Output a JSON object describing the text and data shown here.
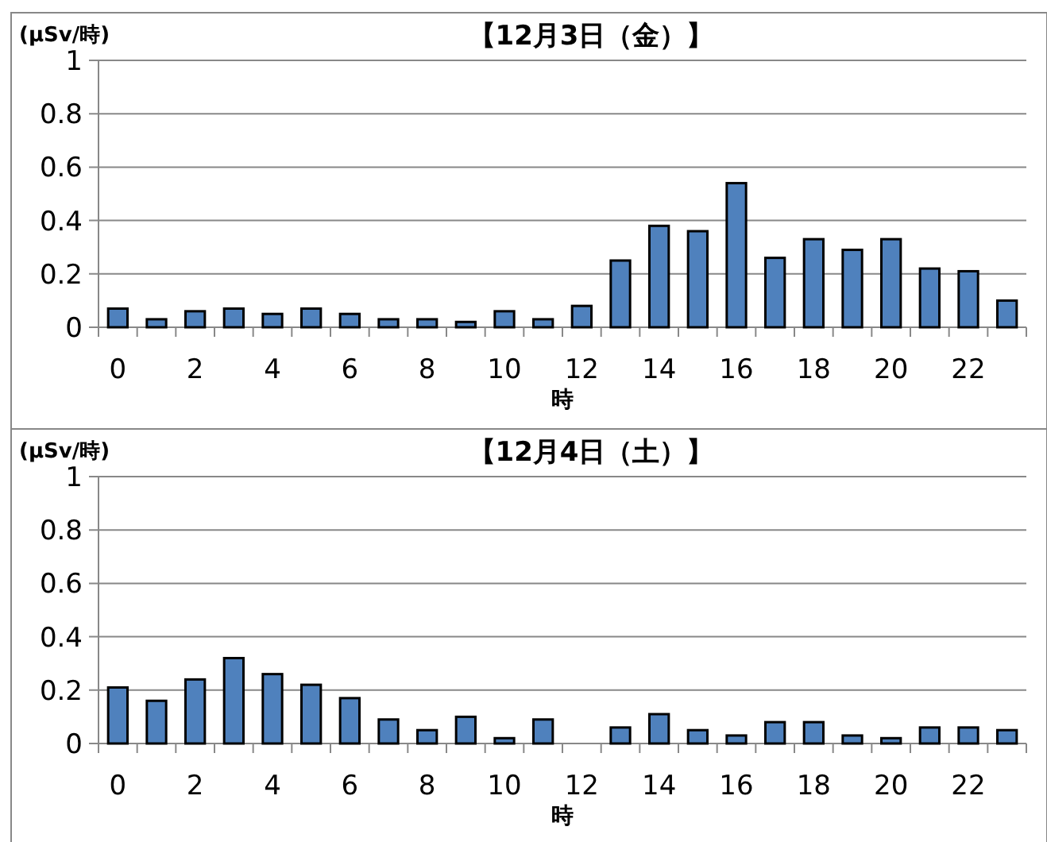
{
  "chart_data": [
    {
      "type": "bar",
      "title": "【12月3日（金）】",
      "ylabel": "(μSv/時)",
      "xlabel": "時",
      "categories": [
        "0",
        null,
        "2",
        null,
        "4",
        null,
        "6",
        null,
        "8",
        null,
        "10",
        null,
        "12",
        null,
        "14",
        null,
        "16",
        null,
        "18",
        null,
        "20",
        null,
        "22",
        null
      ],
      "values": [
        0.07,
        0.03,
        0.06,
        0.07,
        0.05,
        0.07,
        0.05,
        0.03,
        0.03,
        0.02,
        0.06,
        0.03,
        0.08,
        0.25,
        0.38,
        0.36,
        0.54,
        0.26,
        0.33,
        0.29,
        0.33,
        0.22,
        0.21,
        0.1
      ],
      "color": "#4f81bd",
      "ylim": [
        0,
        1
      ],
      "yticks": [
        0,
        0.2,
        0.4,
        0.6,
        0.8,
        1
      ],
      "grid": "y"
    },
    {
      "type": "bar",
      "title": "【12月4日（土）】",
      "ylabel": "(μSv/時)",
      "xlabel": "時",
      "categories": [
        "0",
        null,
        "2",
        null,
        "4",
        null,
        "6",
        null,
        "8",
        null,
        "10",
        null,
        "12",
        null,
        "14",
        null,
        "16",
        null,
        "18",
        null,
        "20",
        null,
        "22",
        null
      ],
      "values": [
        0.21,
        0.16,
        0.24,
        0.32,
        0.26,
        0.22,
        0.17,
        0.09,
        0.05,
        0.1,
        0.02,
        0.09,
        null,
        0.06,
        0.11,
        0.05,
        0.03,
        0.08,
        0.08,
        0.03,
        0.02,
        0.06,
        0.06,
        0.05
      ],
      "color": "#4f81bd",
      "ylim": [
        0,
        1
      ],
      "yticks": [
        0,
        0.2,
        0.4,
        0.6,
        0.8,
        1
      ],
      "grid": "y"
    }
  ]
}
